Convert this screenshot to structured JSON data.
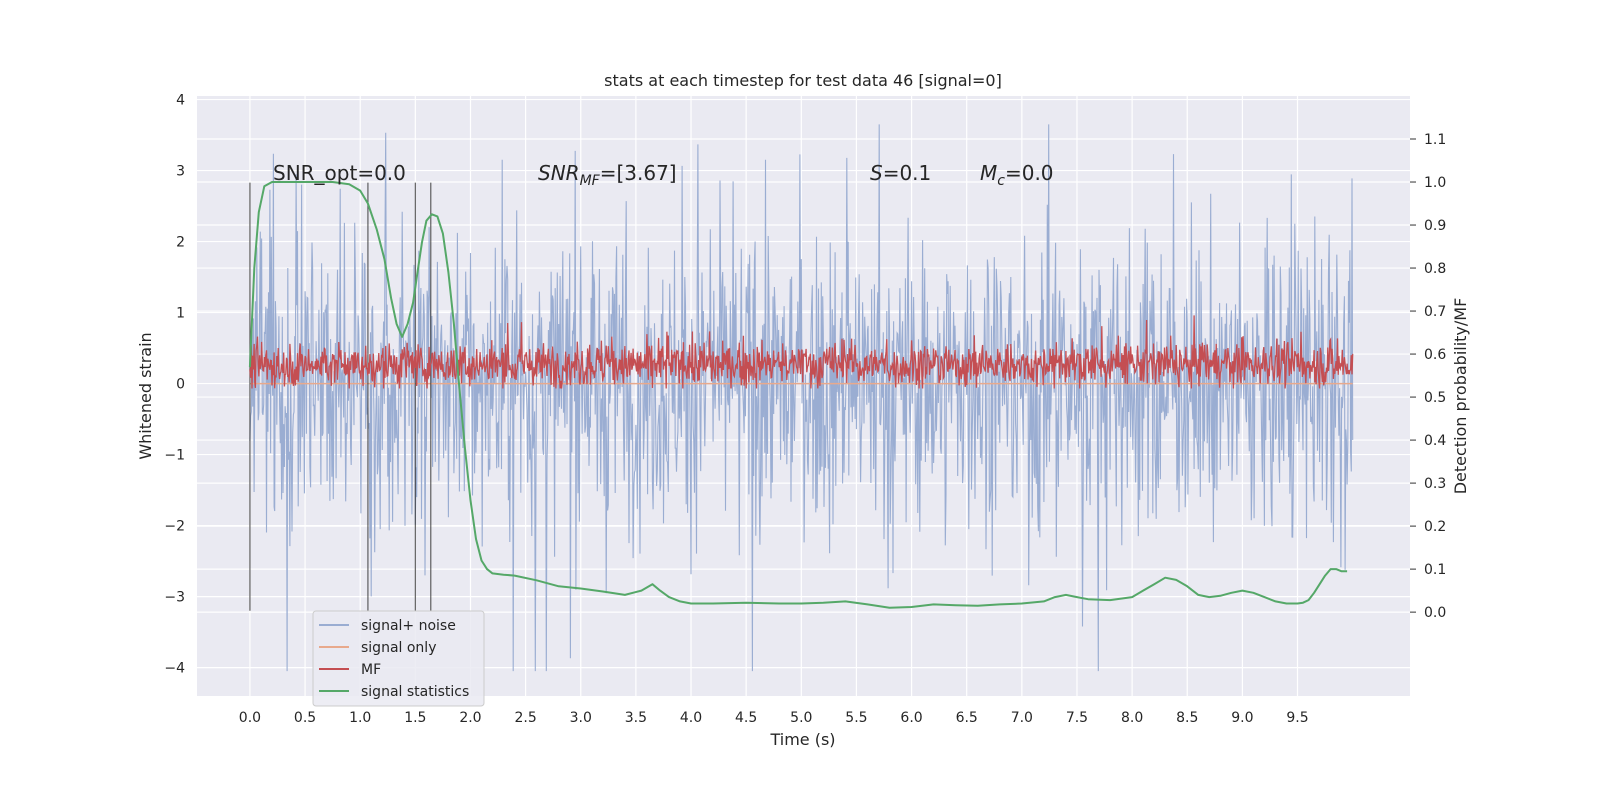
{
  "chart_data": {
    "type": "line",
    "title": "stats at each timestep for test data 46 [signal=0]",
    "xlabel": "Time (s)",
    "ylabel": "Whitened strain",
    "y2label": "Detection probability/MF",
    "xlim": [
      -0.48,
      10.52
    ],
    "ylim": [
      -4.4,
      4.05
    ],
    "y2lim": [
      -0.195,
      1.2
    ],
    "x_ticks": [
      "0.0",
      "0.5",
      "1.0",
      "1.5",
      "2.0",
      "2.5",
      "3.0",
      "3.5",
      "4.0",
      "4.5",
      "5.0",
      "5.5",
      "6.0",
      "6.5",
      "7.0",
      "7.5",
      "8.0",
      "8.5",
      "9.0",
      "9.5"
    ],
    "y_ticks": [
      "−4",
      "−3",
      "−2",
      "−1",
      "0",
      "1",
      "2",
      "3",
      "4"
    ],
    "y2_ticks": [
      "0.0",
      "0.1",
      "0.2",
      "0.3",
      "0.4",
      "0.5",
      "0.6",
      "0.7",
      "0.8",
      "0.9",
      "1.0",
      "1.1"
    ],
    "grid": true,
    "legend_position": "lower-left",
    "annotations": {
      "snr_opt": "SNR_opt=0.0",
      "snr_mf_main": "SNR",
      "snr_mf_sub": "MF",
      "snr_mf_value": "=[3.67]",
      "s_main": "S",
      "s_value": "=0.1",
      "mc_main": "M",
      "mc_sub": "c",
      "mc_value": "=0.0"
    },
    "vertical_markers_x": [
      0.0,
      1.07,
      1.5,
      1.64
    ],
    "series": [
      {
        "name": "signal+ noise",
        "color": "#9aadd2",
        "x_range": [
          0.0,
          10.0
        ],
        "envelope_p90": [
          1.3,
          2.5
        ],
        "envelope_p99": [
          2.4,
          3.3
        ],
        "min": -4.05,
        "max": 3.65
      },
      {
        "name": "signal only",
        "color": "#e8a98c",
        "x": [
          0.0,
          10.0
        ],
        "values": [
          0.0,
          0.0
        ]
      },
      {
        "name": "MF",
        "color": "#c44e52",
        "axis": "y2",
        "x_range": [
          0.0,
          10.0
        ],
        "typical_range": [
          0.53,
          0.62
        ],
        "max": 0.69
      },
      {
        "name": "signal statistics",
        "color": "#55a868",
        "axis": "y2",
        "x": [
          0.0,
          0.04,
          0.08,
          0.13,
          0.2,
          0.3,
          0.45,
          0.6,
          0.75,
          0.9,
          1.0,
          1.07,
          1.15,
          1.22,
          1.28,
          1.33,
          1.38,
          1.43,
          1.48,
          1.52,
          1.56,
          1.6,
          1.65,
          1.7,
          1.75,
          1.8,
          1.85,
          1.9,
          1.95,
          2.0,
          2.05,
          2.1,
          2.15,
          2.2,
          2.3,
          2.4,
          2.6,
          2.8,
          3.0,
          3.2,
          3.4,
          3.55,
          3.65,
          3.72,
          3.8,
          3.9,
          4.0,
          4.2,
          4.5,
          4.8,
          5.0,
          5.2,
          5.4,
          5.6,
          5.8,
          6.0,
          6.2,
          6.4,
          6.6,
          6.8,
          7.0,
          7.2,
          7.3,
          7.4,
          7.5,
          7.6,
          7.8,
          8.0,
          8.1,
          8.2,
          8.3,
          8.4,
          8.5,
          8.6,
          8.7,
          8.8,
          8.9,
          9.0,
          9.1,
          9.2,
          9.3,
          9.4,
          9.5,
          9.55,
          9.6,
          9.65,
          9.7,
          9.75,
          9.8,
          9.85,
          9.9,
          9.95
        ],
        "values": [
          0.57,
          0.8,
          0.93,
          0.99,
          1.0,
          1.0,
          1.0,
          1.0,
          1.0,
          0.995,
          0.98,
          0.95,
          0.89,
          0.82,
          0.73,
          0.67,
          0.64,
          0.67,
          0.72,
          0.79,
          0.86,
          0.91,
          0.925,
          0.92,
          0.88,
          0.79,
          0.67,
          0.52,
          0.38,
          0.26,
          0.17,
          0.12,
          0.1,
          0.09,
          0.087,
          0.085,
          0.074,
          0.06,
          0.055,
          0.048,
          0.04,
          0.05,
          0.065,
          0.05,
          0.035,
          0.025,
          0.02,
          0.02,
          0.022,
          0.02,
          0.02,
          0.022,
          0.025,
          0.018,
          0.01,
          0.012,
          0.018,
          0.016,
          0.015,
          0.018,
          0.02,
          0.025,
          0.035,
          0.04,
          0.035,
          0.03,
          0.028,
          0.035,
          0.05,
          0.065,
          0.08,
          0.075,
          0.06,
          0.04,
          0.035,
          0.038,
          0.045,
          0.05,
          0.045,
          0.035,
          0.025,
          0.02,
          0.02,
          0.022,
          0.028,
          0.045,
          0.065,
          0.085,
          0.1,
          0.1,
          0.095,
          0.095
        ]
      }
    ]
  }
}
